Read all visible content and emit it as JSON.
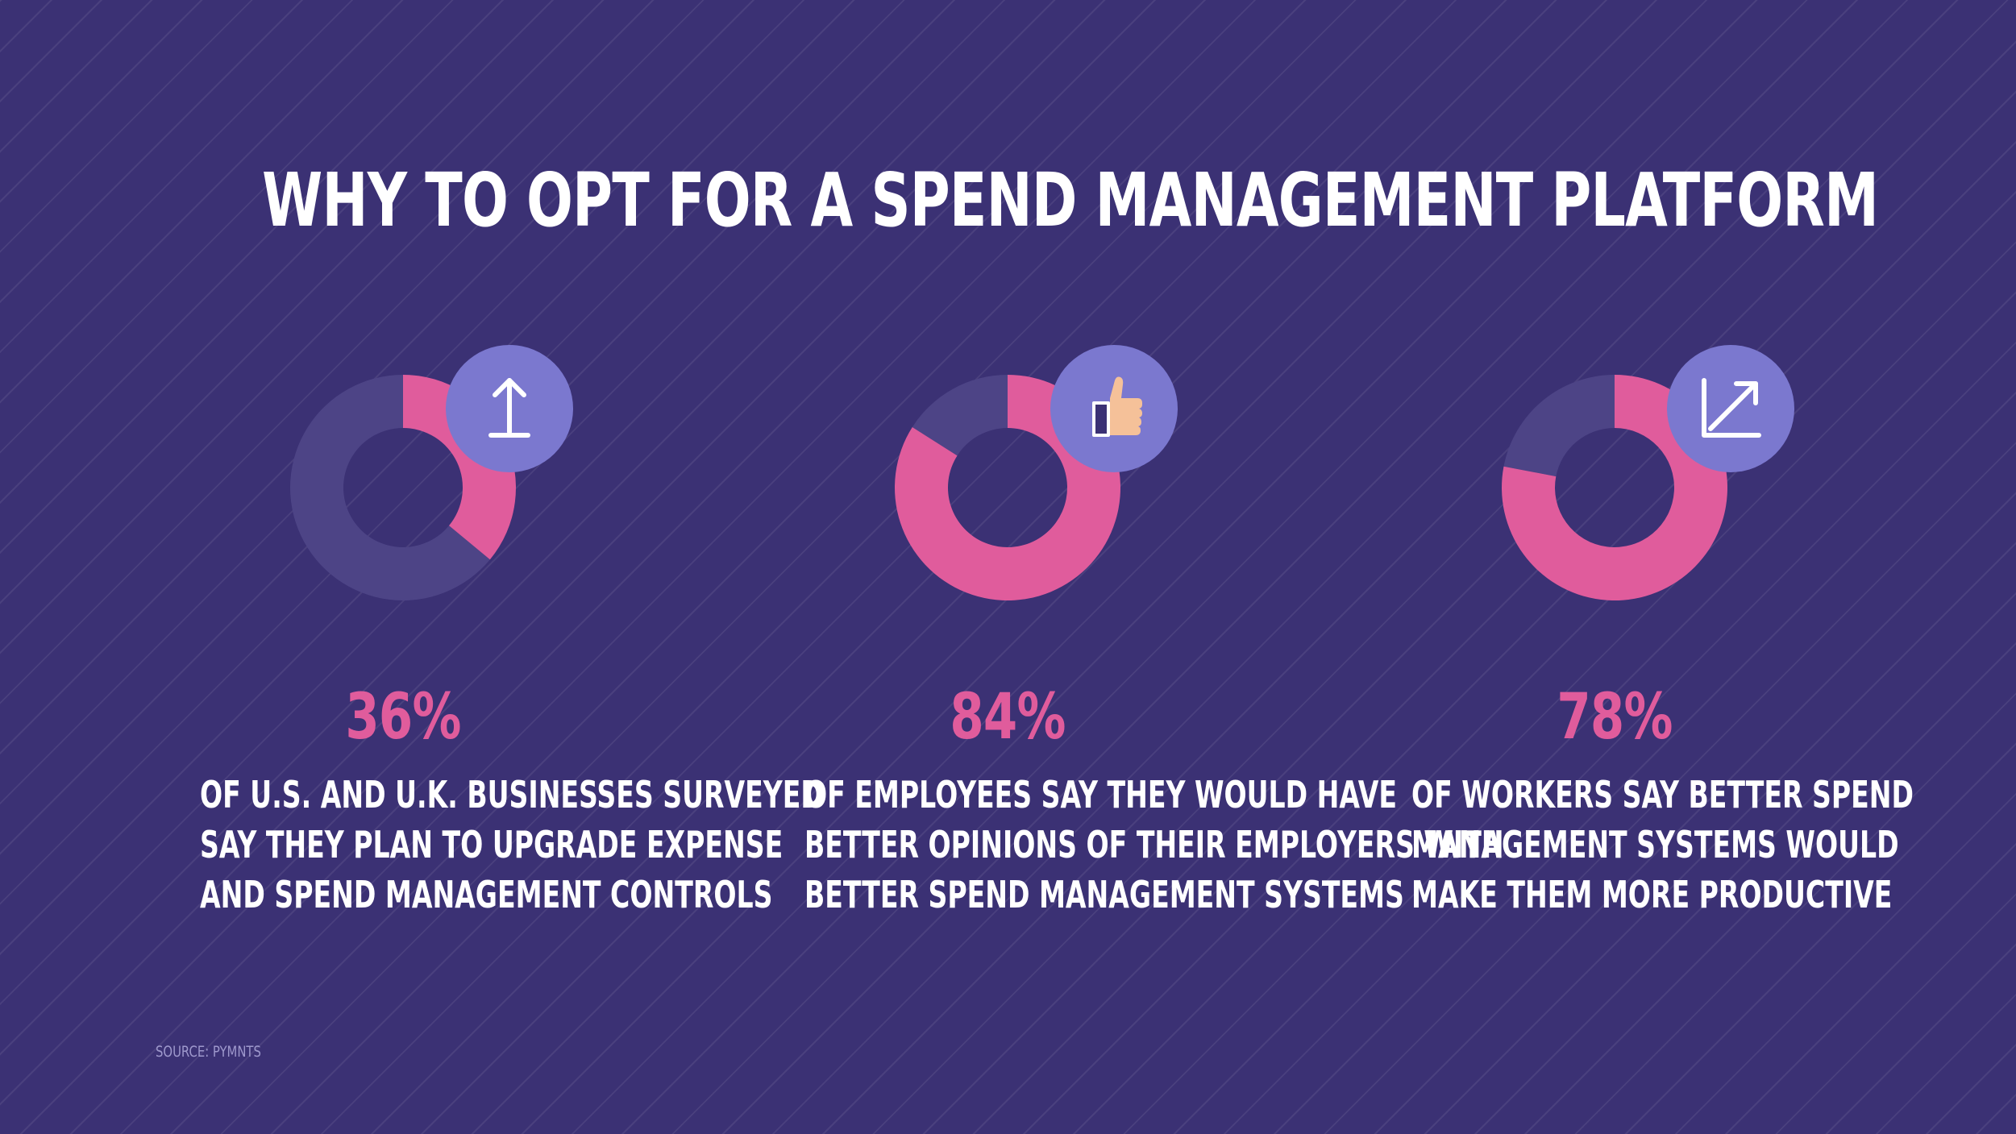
{
  "title": "WHY TO OPT FOR A SPEND MANAGEMENT PLATFORM",
  "source": "SOURCE: PYMNTS",
  "colors": {
    "background": "#3b3174",
    "accent": "#e05c9c",
    "remainder": "#4d4486",
    "icon_badge": "#7b78cf"
  },
  "chart_data": [
    {
      "type": "pie",
      "value": 36,
      "remainder": 64,
      "label": "36%",
      "description": [
        "OF U.S. AND U.K. BUSINESSES SURVEYED",
        "SAY THEY PLAN TO UPGRADE EXPENSE",
        "AND SPEND MANAGEMENT CONTROLS"
      ],
      "icon": "upload-arrow-icon"
    },
    {
      "type": "pie",
      "value": 84,
      "remainder": 16,
      "label": "84%",
      "description": [
        "OF EMPLOYEES SAY THEY WOULD HAVE",
        "BETTER OPINIONS OF THEIR EMPLOYERS WITH",
        "BETTER SPEND MANAGEMENT SYSTEMS"
      ],
      "icon": "thumbs-up-icon"
    },
    {
      "type": "pie",
      "value": 78,
      "remainder": 22,
      "label": "78%",
      "description": [
        "OF WORKERS SAY BETTER SPEND",
        "MANAGEMENT SYSTEMS WOULD",
        "MAKE THEM MORE PRODUCTIVE"
      ],
      "icon": "growth-chart-icon"
    }
  ]
}
